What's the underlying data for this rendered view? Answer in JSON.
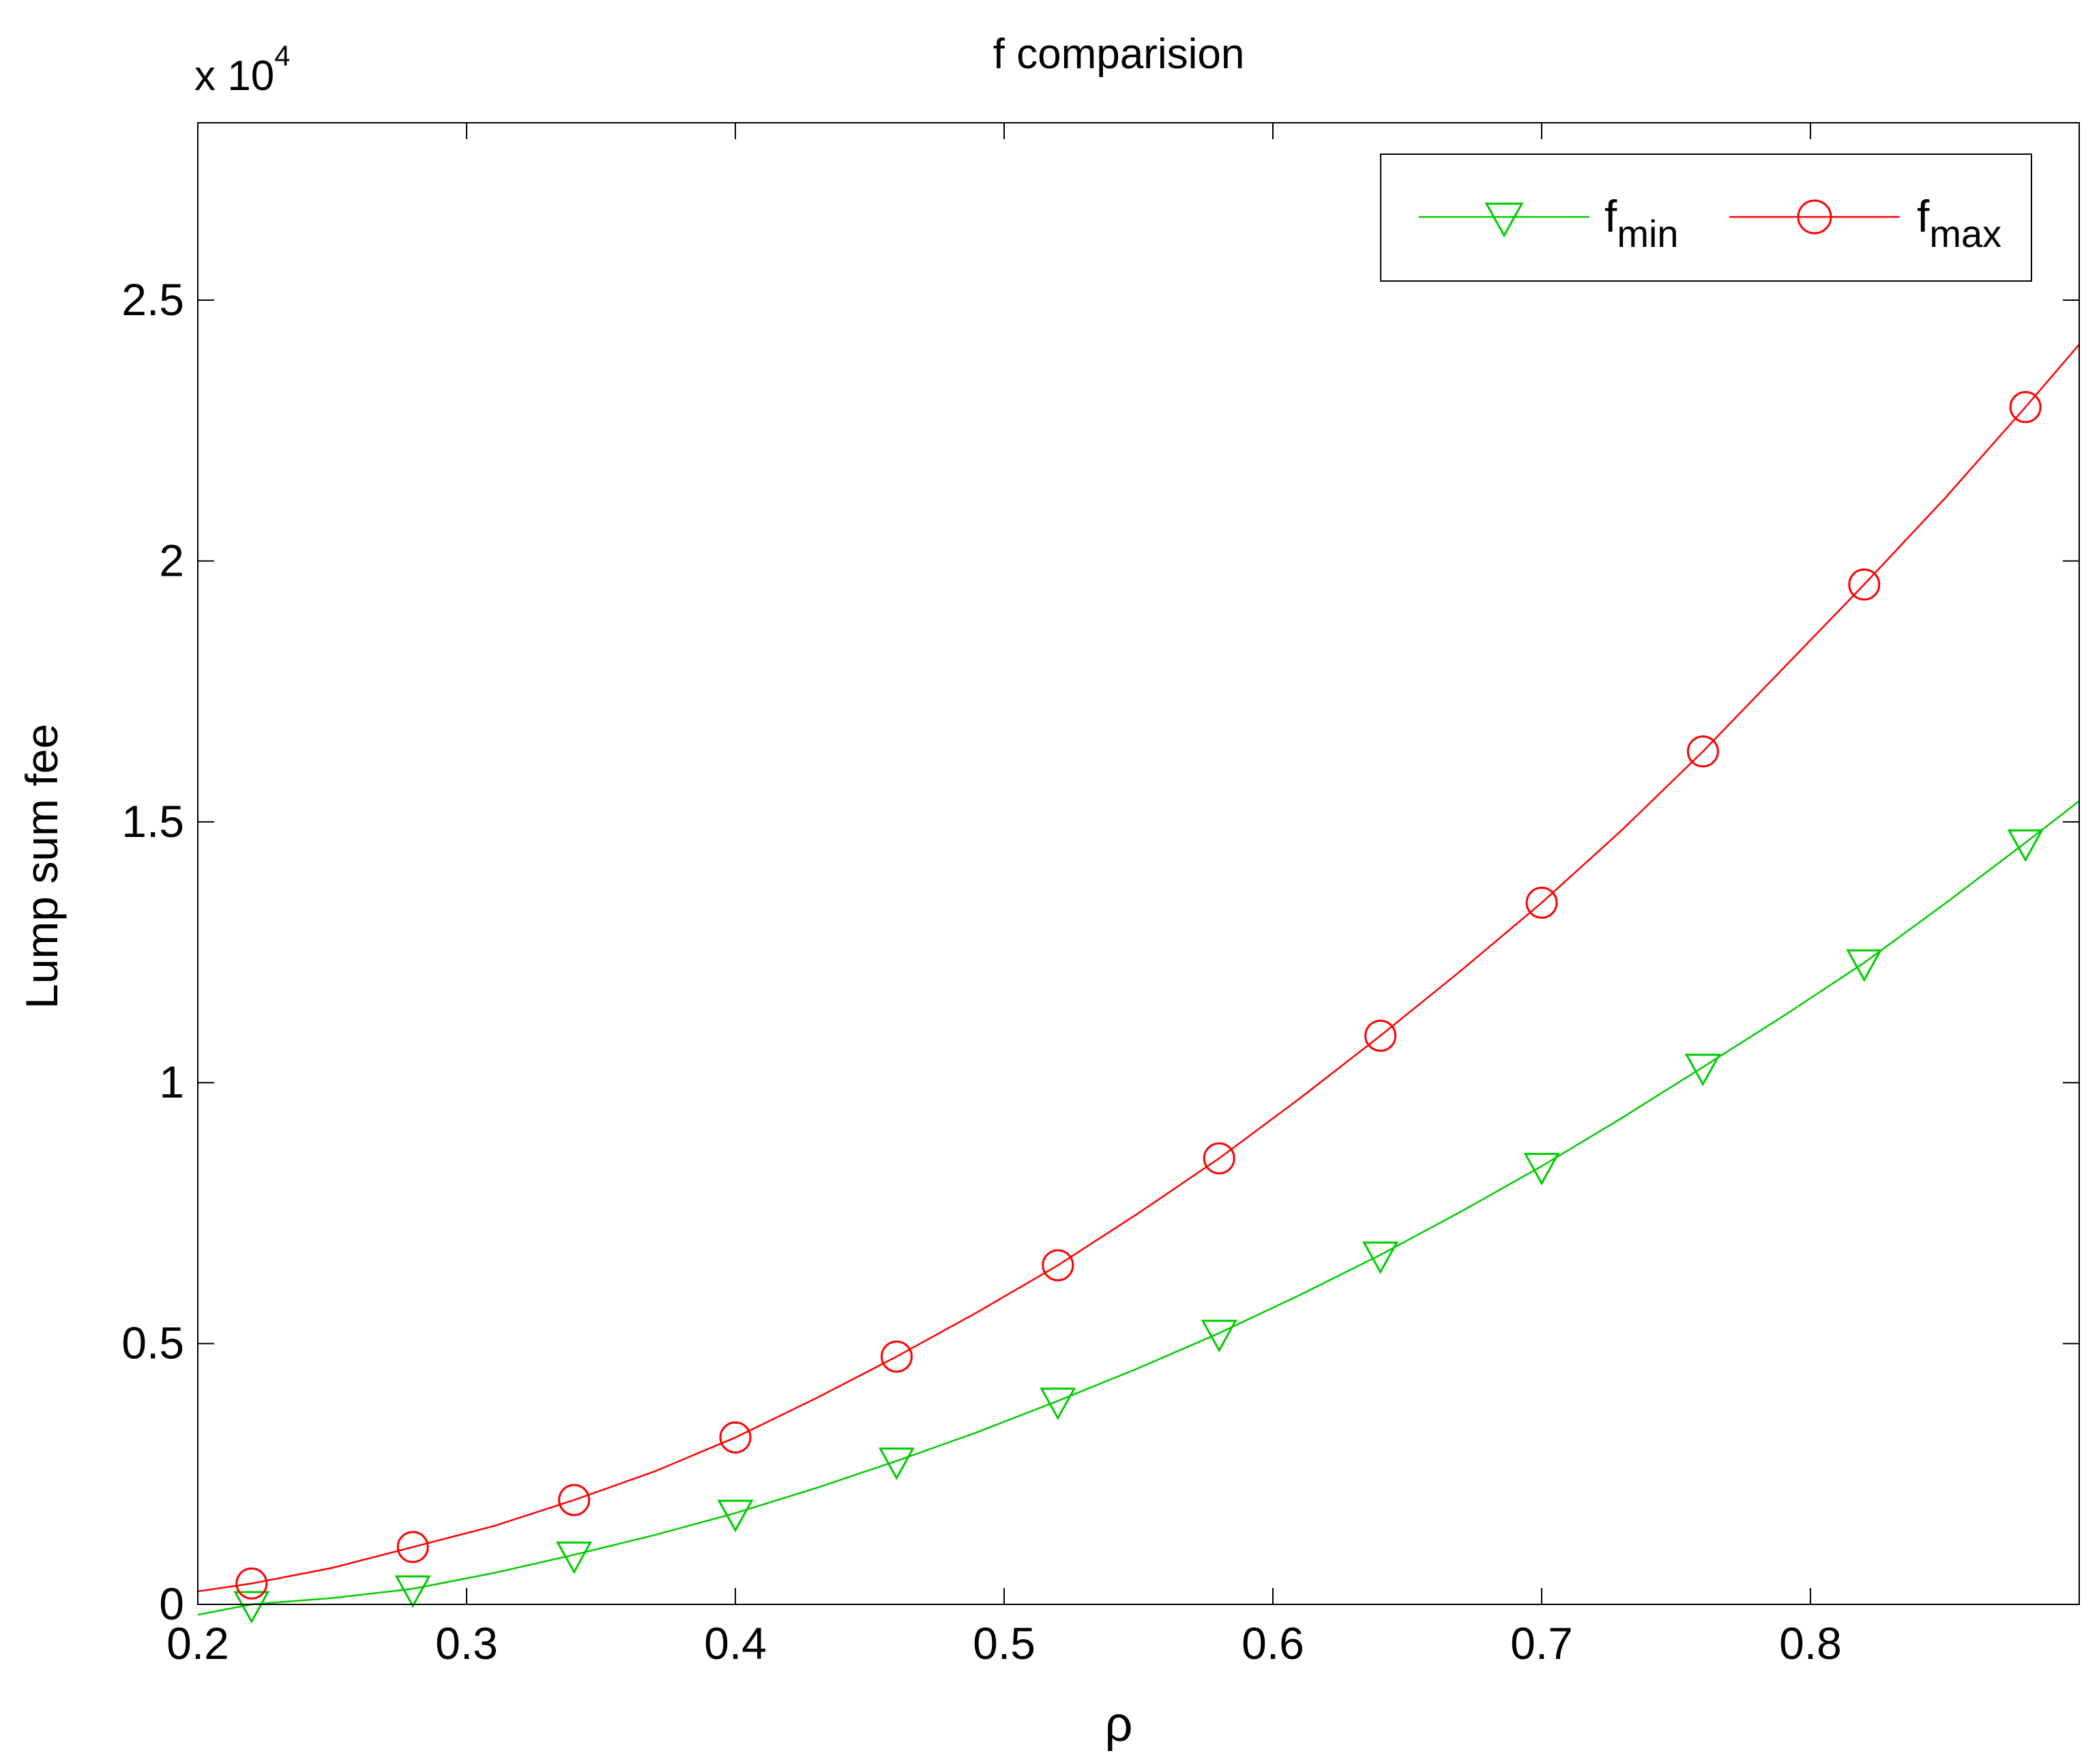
{
  "chart_data": {
    "type": "line",
    "title": "f comparision",
    "xlabel": "ρ",
    "ylabel": "Lump sum fee",
    "y_exponent_label": "x 10",
    "y_exponent_power": "4",
    "xlim": [
      0.2,
      0.9
    ],
    "ylim": [
      0,
      28400
    ],
    "x_ticks": [
      0.2,
      0.3,
      0.4,
      0.5,
      0.6,
      0.7,
      0.8
    ],
    "x_tick_labels": [
      "0.2",
      "0.3",
      "0.4",
      "0.5",
      "0.6",
      "0.7",
      "0.8"
    ],
    "y_ticks": [
      0,
      5000,
      10000,
      15000,
      20000,
      25000
    ],
    "y_tick_labels": [
      "0",
      "0.5",
      "1",
      "1.5",
      "2",
      "2.5"
    ],
    "grid": false,
    "legend_position": "top-right",
    "legend_orientation": "horizontal",
    "series": [
      {
        "name": "f",
        "name_sub": "min",
        "color": "#00cc00",
        "marker": "triangle-down",
        "x": [
          0.22,
          0.28,
          0.34,
          0.4,
          0.46,
          0.52,
          0.58,
          0.64,
          0.7,
          0.76,
          0.82,
          0.88
        ],
        "values": [
          0,
          300,
          950,
          1750,
          2750,
          3900,
          5200,
          6700,
          8400,
          10300,
          12300,
          14600
        ],
        "curve_x": [
          0.2,
          0.22,
          0.25,
          0.28,
          0.31,
          0.34,
          0.37,
          0.4,
          0.43,
          0.46,
          0.49,
          0.52,
          0.55,
          0.58,
          0.61,
          0.64,
          0.67,
          0.7,
          0.73,
          0.76,
          0.79,
          0.82,
          0.85,
          0.88,
          0.9
        ],
        "curve_y": [
          -200,
          0,
          120,
          300,
          600,
          950,
          1330,
          1750,
          2230,
          2750,
          3300,
          3900,
          4530,
          5200,
          5930,
          6700,
          7530,
          8400,
          9330,
          10300,
          11280,
          12300,
          13430,
          14600,
          15400
        ]
      },
      {
        "name": "f",
        "name_sub": "max",
        "color": "#ff0000",
        "marker": "circle",
        "x": [
          0.22,
          0.28,
          0.34,
          0.4,
          0.46,
          0.52,
          0.58,
          0.64,
          0.7,
          0.76,
          0.82,
          0.88
        ],
        "values": [
          400,
          1100,
          2000,
          3200,
          4750,
          6500,
          8550,
          10900,
          13450,
          16350,
          19550,
          22950
        ],
        "curve_x": [
          0.2,
          0.22,
          0.25,
          0.28,
          0.31,
          0.34,
          0.37,
          0.4,
          0.43,
          0.46,
          0.49,
          0.52,
          0.55,
          0.58,
          0.61,
          0.64,
          0.67,
          0.7,
          0.73,
          0.76,
          0.79,
          0.82,
          0.85,
          0.88,
          0.9
        ],
        "curve_y": [
          250,
          400,
          700,
          1100,
          1500,
          2000,
          2550,
          3200,
          3950,
          4750,
          5600,
          6500,
          7500,
          8550,
          9700,
          10900,
          12150,
          13450,
          14850,
          16350,
          17950,
          19550,
          21200,
          22950,
          24150
        ]
      }
    ]
  }
}
